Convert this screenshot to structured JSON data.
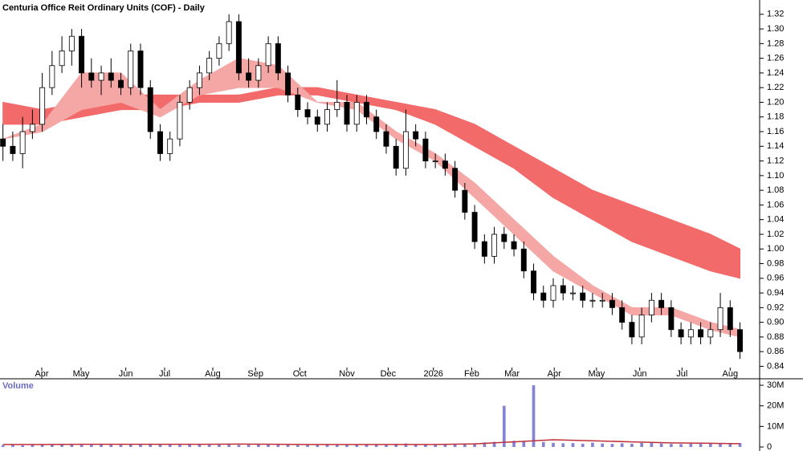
{
  "chart_data": [
    {
      "type": "candlestick",
      "title": "Centuria Office Reit Ordinary Units (COF) - Daily",
      "xlim": [
        -0.3,
        77.0
      ],
      "ylim": [
        0.823,
        1.334
      ],
      "xticks": [
        {
          "value": 3.95,
          "label": "Apr"
        },
        {
          "value": 7.95,
          "label": "May"
        },
        {
          "value": 12.5,
          "label": "Jun"
        },
        {
          "value": 16.45,
          "label": "Jul"
        },
        {
          "value": 21.35,
          "label": "Aug"
        },
        {
          "value": 25.7,
          "label": "Sep"
        },
        {
          "value": 30.2,
          "label": "Oct"
        },
        {
          "value": 35.0,
          "label": "Nov"
        },
        {
          "value": 39.2,
          "label": "Dec"
        },
        {
          "value": 43.8,
          "label": "2026"
        },
        {
          "value": 47.7,
          "label": "Feb"
        },
        {
          "value": 51.8,
          "label": "Mar"
        },
        {
          "value": 56.1,
          "label": "Apr"
        },
        {
          "value": 60.4,
          "label": "May"
        },
        {
          "value": 64.8,
          "label": "Jun"
        },
        {
          "value": 69.1,
          "label": "Jul"
        },
        {
          "value": 74.0,
          "label": "Aug"
        }
      ],
      "yticks": [
        {
          "value": 0.84,
          "label": "0.84"
        },
        {
          "value": 0.86,
          "label": "0.86"
        },
        {
          "value": 0.88,
          "label": "0.88"
        },
        {
          "value": 0.9,
          "label": "0.90"
        },
        {
          "value": 0.92,
          "label": "0.92"
        },
        {
          "value": 0.94,
          "label": "0.94"
        },
        {
          "value": 0.96,
          "label": "0.96"
        },
        {
          "value": 0.98,
          "label": "0.98"
        },
        {
          "value": 1.0,
          "label": "1.00"
        },
        {
          "value": 1.02,
          "label": "1.02"
        },
        {
          "value": 1.04,
          "label": "1.04"
        },
        {
          "value": 1.06,
          "label": "1.06"
        },
        {
          "value": 1.08,
          "label": "1.08"
        },
        {
          "value": 1.1,
          "label": "1.10"
        },
        {
          "value": 1.12,
          "label": "1.12"
        },
        {
          "value": 1.14,
          "label": "1.14"
        },
        {
          "value": 1.16,
          "label": "1.16"
        },
        {
          "value": 1.18,
          "label": "1.18"
        },
        {
          "value": 1.2,
          "label": "1.20"
        },
        {
          "value": 1.22,
          "label": "1.22"
        },
        {
          "value": 1.24,
          "label": "1.24"
        },
        {
          "value": 1.26,
          "label": "1.26"
        },
        {
          "value": 1.28,
          "label": "1.28"
        },
        {
          "value": 1.3,
          "label": "1.30"
        },
        {
          "value": 1.32,
          "label": "1.32"
        }
      ],
      "open": [
        1.15,
        1.14,
        1.13,
        1.16,
        1.17,
        1.22,
        1.25,
        1.27,
        1.29,
        1.24,
        1.23,
        1.24,
        1.23,
        1.22,
        1.27,
        1.22,
        1.16,
        1.13,
        1.15,
        1.2,
        1.22,
        1.24,
        1.26,
        1.28,
        1.31,
        1.24,
        1.23,
        1.25,
        1.28,
        1.24,
        1.21,
        1.19,
        1.18,
        1.17,
        1.19,
        1.2,
        1.17,
        1.2,
        1.18,
        1.16,
        1.14,
        1.11,
        1.16,
        1.15,
        1.12,
        1.12,
        1.11,
        1.08,
        1.05,
        1.01,
        0.99,
        1.02,
        1.01,
        1.0,
        0.97,
        0.94,
        0.93,
        0.95,
        0.94,
        0.94,
        0.93,
        0.93,
        0.93,
        0.92,
        0.9,
        0.88,
        0.91,
        0.93,
        0.92,
        0.89,
        0.88,
        0.89,
        0.88,
        0.89,
        0.92,
        0.89
      ],
      "high": [
        1.17,
        1.16,
        1.18,
        1.19,
        1.24,
        1.27,
        1.29,
        1.3,
        1.3,
        1.26,
        1.25,
        1.26,
        1.24,
        1.28,
        1.28,
        1.23,
        1.17,
        1.16,
        1.21,
        1.23,
        1.25,
        1.27,
        1.29,
        1.32,
        1.32,
        1.26,
        1.26,
        1.29,
        1.29,
        1.25,
        1.22,
        1.2,
        1.19,
        1.2,
        1.23,
        1.21,
        1.21,
        1.21,
        1.19,
        1.17,
        1.15,
        1.19,
        1.17,
        1.16,
        1.13,
        1.13,
        1.12,
        1.09,
        1.06,
        1.02,
        1.03,
        1.03,
        1.02,
        1.01,
        0.98,
        0.95,
        0.96,
        0.96,
        0.95,
        0.95,
        0.94,
        0.94,
        0.94,
        0.93,
        0.91,
        0.92,
        0.94,
        0.94,
        0.93,
        0.9,
        0.9,
        0.9,
        0.9,
        0.94,
        0.93,
        0.9
      ],
      "low": [
        1.12,
        1.12,
        1.11,
        1.15,
        1.16,
        1.21,
        1.24,
        1.25,
        1.22,
        1.22,
        1.21,
        1.22,
        1.21,
        1.21,
        1.21,
        1.15,
        1.12,
        1.12,
        1.14,
        1.19,
        1.21,
        1.23,
        1.25,
        1.27,
        1.23,
        1.22,
        1.22,
        1.24,
        1.23,
        1.2,
        1.18,
        1.17,
        1.16,
        1.16,
        1.18,
        1.16,
        1.16,
        1.17,
        1.15,
        1.13,
        1.1,
        1.1,
        1.14,
        1.11,
        1.11,
        1.1,
        1.07,
        1.04,
        1.0,
        0.98,
        0.98,
        1.0,
        0.99,
        0.96,
        0.93,
        0.92,
        0.92,
        0.93,
        0.93,
        0.92,
        0.92,
        0.92,
        0.91,
        0.89,
        0.87,
        0.87,
        0.9,
        0.91,
        0.88,
        0.87,
        0.87,
        0.87,
        0.87,
        0.88,
        0.88,
        0.85
      ],
      "close": [
        1.14,
        1.13,
        1.16,
        1.17,
        1.22,
        1.25,
        1.27,
        1.29,
        1.24,
        1.23,
        1.24,
        1.23,
        1.22,
        1.27,
        1.22,
        1.16,
        1.13,
        1.15,
        1.2,
        1.22,
        1.24,
        1.26,
        1.28,
        1.31,
        1.24,
        1.23,
        1.25,
        1.28,
        1.24,
        1.21,
        1.19,
        1.18,
        1.17,
        1.19,
        1.2,
        1.17,
        1.2,
        1.18,
        1.16,
        1.14,
        1.11,
        1.16,
        1.15,
        1.12,
        1.12,
        1.11,
        1.08,
        1.05,
        1.01,
        0.99,
        1.02,
        1.01,
        1.0,
        0.97,
        0.94,
        0.93,
        0.95,
        0.94,
        0.94,
        0.93,
        0.93,
        0.93,
        0.92,
        0.9,
        0.88,
        0.91,
        0.93,
        0.92,
        0.89,
        0.88,
        0.89,
        0.88,
        0.89,
        0.92,
        0.89,
        0.86
      ],
      "bands": [
        {
          "color": "#f26a6a",
          "x": [
            0,
            4,
            8,
            12,
            16,
            20,
            24,
            28,
            32,
            36,
            40,
            44,
            48,
            52,
            56,
            60,
            64,
            68,
            72,
            75
          ],
          "upper": [
            1.2,
            1.19,
            1.2,
            1.21,
            1.21,
            1.21,
            1.21,
            1.22,
            1.22,
            1.21,
            1.2,
            1.19,
            1.17,
            1.14,
            1.11,
            1.08,
            1.06,
            1.04,
            1.02,
            1.0
          ],
          "lower": [
            1.17,
            1.17,
            1.18,
            1.19,
            1.19,
            1.2,
            1.2,
            1.21,
            1.21,
            1.2,
            1.19,
            1.17,
            1.14,
            1.11,
            1.07,
            1.04,
            1.01,
            0.99,
            0.97,
            0.96
          ]
        },
        {
          "color": "#f5a7a5",
          "x": [
            0,
            4,
            8,
            12,
            16,
            20,
            24,
            28,
            32,
            36,
            40,
            44,
            48,
            52,
            56,
            60,
            64,
            68,
            72,
            75
          ],
          "upper": [
            1.15,
            1.17,
            1.24,
            1.24,
            1.19,
            1.23,
            1.26,
            1.25,
            1.2,
            1.2,
            1.16,
            1.13,
            1.09,
            1.04,
            0.99,
            0.95,
            0.92,
            0.92,
            0.9,
            0.89
          ],
          "lower": [
            1.15,
            1.16,
            1.19,
            1.2,
            1.18,
            1.21,
            1.22,
            1.22,
            1.2,
            1.19,
            1.15,
            1.12,
            1.07,
            1.02,
            0.97,
            0.94,
            0.91,
            0.91,
            0.89,
            0.88
          ]
        }
      ]
    },
    {
      "type": "bar",
      "title": "Volume",
      "color": "#8484d6",
      "xlim": [
        -0.3,
        77.0
      ],
      "ylim": [
        0,
        31200000
      ],
      "yticks": [
        {
          "value": 0,
          "label": "0"
        },
        {
          "value": 10000000,
          "label": "10M"
        },
        {
          "value": 20000000,
          "label": "20M"
        },
        {
          "value": 30000000,
          "label": "30M"
        }
      ],
      "values": [
        900000,
        1100000,
        800000,
        1000000,
        1200000,
        1300000,
        1500000,
        1200000,
        1100000,
        1000000,
        1300000,
        1100000,
        1000000,
        1200000,
        1400000,
        1600000,
        1300000,
        1100000,
        1000000,
        1200000,
        1300000,
        1100000,
        1500000,
        1200000,
        1000000,
        1100000,
        1300000,
        1400000,
        1200000,
        1000000,
        900000,
        1100000,
        1200000,
        1000000,
        1300000,
        1100000,
        1200000,
        1000000,
        1100000,
        1300000,
        1500000,
        1700000,
        1200000,
        1100000,
        1000000,
        1300000,
        1400000,
        1600000,
        1800000,
        2200000,
        2500000,
        20000000,
        3000000,
        2600000,
        30000000,
        2400000,
        2000000,
        1800000,
        1900000,
        1600000,
        2100000,
        1700000,
        1500000,
        1800000,
        1600000,
        2000000,
        2200000,
        1700000,
        1500000,
        1400000,
        1600000,
        1500000,
        1800000,
        1700000,
        1600000,
        1900000
      ],
      "line": {
        "color": "#c0303a",
        "x": [
          0,
          4,
          8,
          12,
          16,
          20,
          24,
          28,
          32,
          36,
          40,
          44,
          48,
          52,
          56,
          60,
          64,
          68,
          72,
          75
        ],
        "values": [
          1200000,
          1200000,
          1300000,
          1300000,
          1300000,
          1300000,
          1400000,
          1300000,
          1200000,
          1200000,
          1200000,
          1200000,
          1500000,
          2500000,
          3500000,
          3000000,
          2500000,
          2000000,
          1800000,
          1600000
        ]
      }
    }
  ]
}
